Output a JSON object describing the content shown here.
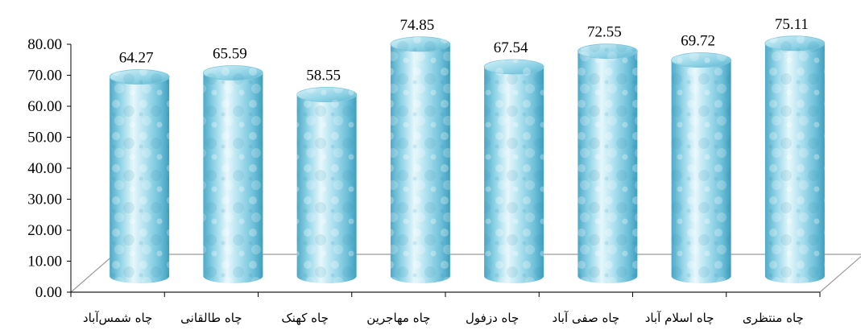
{
  "chart_data": {
    "type": "bar",
    "style": "3d-cylinder",
    "title": "",
    "xlabel": "",
    "ylabel": "",
    "categories": [
      "چاه شمس‌آباد",
      "چاه طالقانی",
      "چاه کهنک",
      "چاه مهاجرین",
      "چاه دزفول",
      "چاه صفی آباد",
      "چاه اسلام آباد",
      "چاه منتظری"
    ],
    "values": [
      64.27,
      65.59,
      58.55,
      74.85,
      67.54,
      72.55,
      69.72,
      75.11
    ],
    "value_labels": [
      "64.27",
      "65.59",
      "58.55",
      "74.85",
      "67.54",
      "72.55",
      "69.72",
      "75.11"
    ],
    "ylim": [
      0,
      80
    ],
    "yticks": [
      "0.00",
      "10.00",
      "20.00",
      "30.00",
      "40.00",
      "50.00",
      "60.00",
      "70.00",
      "80.00"
    ],
    "grid": false,
    "legend": "none",
    "colors": {
      "bar_light": "#e6f7fb",
      "bar_mid": "#8fd3e6",
      "bar_dark": "#3f9fbf",
      "floor_line": "#9a9a9a",
      "axis": "#000000"
    }
  }
}
